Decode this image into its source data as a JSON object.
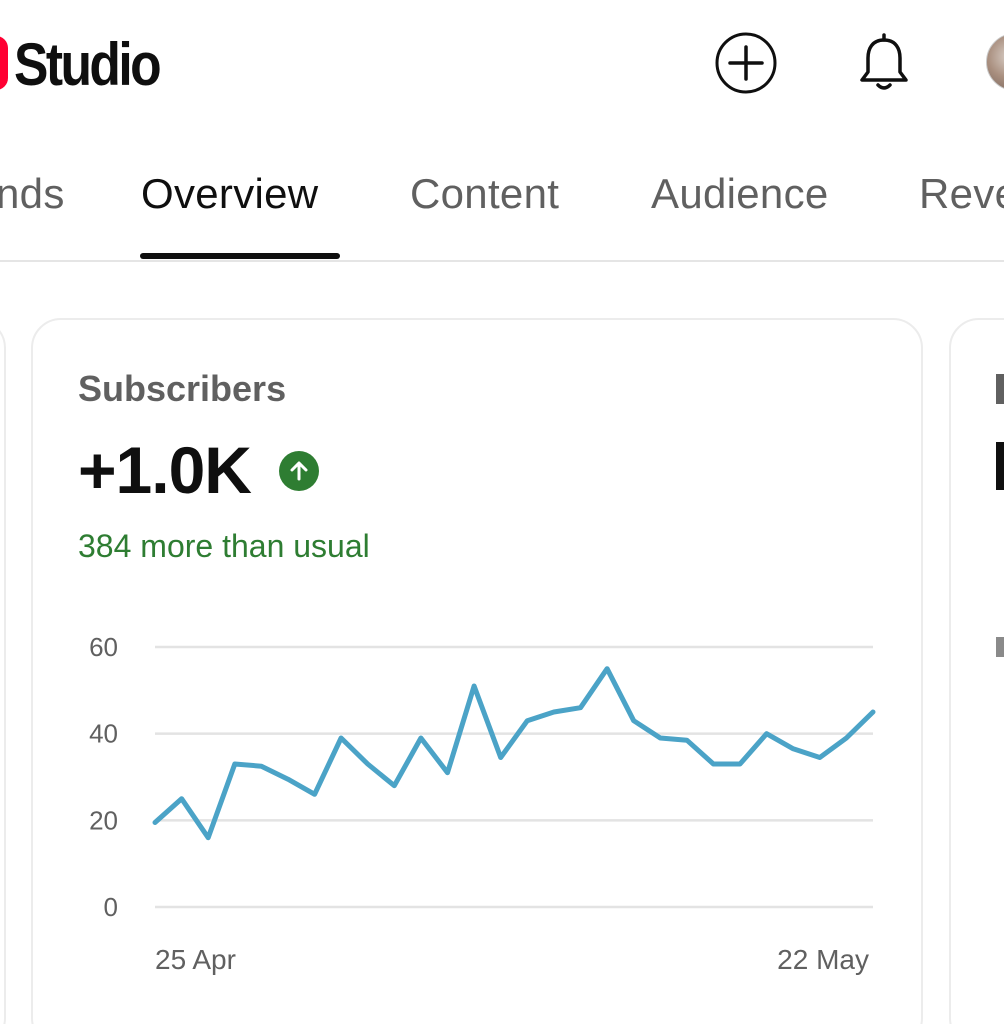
{
  "header": {
    "logo_text": "Studio",
    "create_icon": "add-circle-icon",
    "bell_icon": "bell-icon"
  },
  "tabs": [
    {
      "label": "nds"
    },
    {
      "label": "Overview",
      "active": true
    },
    {
      "label": "Content"
    },
    {
      "label": "Audience"
    },
    {
      "label": "Reve"
    }
  ],
  "card": {
    "title": "Subscribers",
    "value": "+1.0K",
    "trend_icon": "arrow-up-icon",
    "comparison": "384 more than usual"
  },
  "colors": {
    "accent_line": "#4ba3c7",
    "positive": "#2e7d32",
    "brand_red": "#ff0033"
  },
  "chart_data": {
    "type": "line",
    "yticks": [
      60,
      40,
      20,
      0
    ],
    "ylim": [
      0,
      60
    ],
    "x_start_label": "25 Apr",
    "x_end_label": "22 May",
    "values": [
      19.5,
      25,
      16,
      33,
      32.5,
      29.5,
      26,
      39,
      33,
      28,
      39,
      31,
      51,
      34.5,
      43,
      45,
      46,
      55,
      43,
      39,
      38.5,
      33,
      33,
      40,
      36.5,
      34.5,
      39,
      45
    ]
  }
}
